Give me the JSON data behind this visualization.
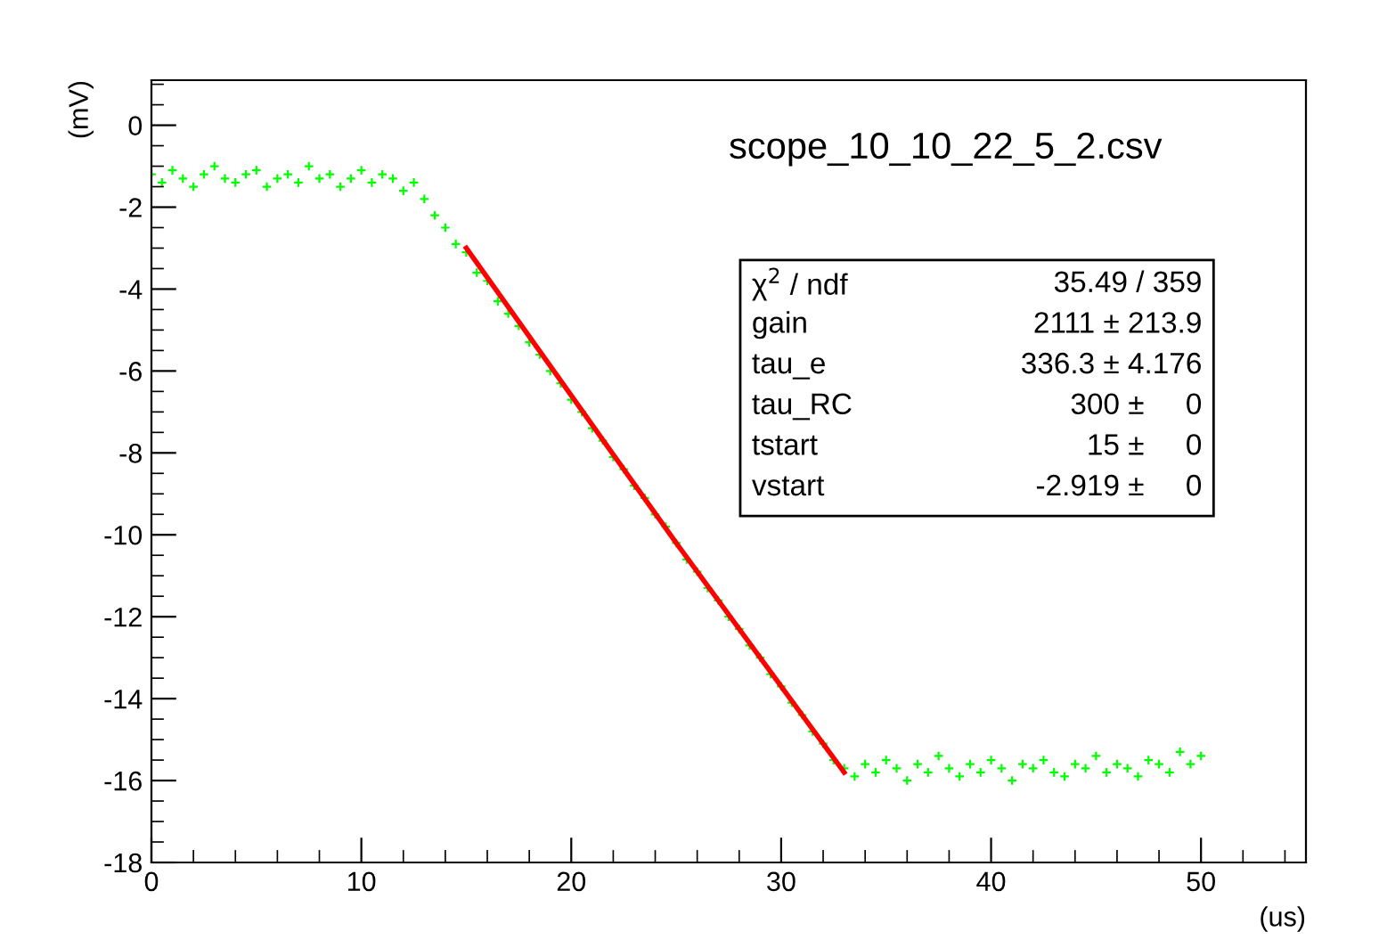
{
  "chart_data": {
    "type": "scatter",
    "title": "scope_10_10_22_5_2.csv",
    "xlabel": "(us)",
    "ylabel": "(mV)",
    "xlim": [
      0,
      55
    ],
    "ylim": [
      -18,
      1.1
    ],
    "xticks": [
      0,
      10,
      20,
      30,
      40,
      50
    ],
    "yticks": [
      -18,
      -16,
      -14,
      -12,
      -10,
      -8,
      -6,
      -4,
      -2,
      0
    ],
    "grid": false,
    "legend": false,
    "series": [
      {
        "marker": "cross",
        "color": "#00ff00",
        "x": [
          0,
          0.5,
          1,
          1.5,
          2,
          2.5,
          3,
          3.5,
          4,
          4.5,
          5,
          5.5,
          6,
          6.5,
          7,
          7.5,
          8,
          8.5,
          9,
          9.5,
          10,
          10.5,
          11,
          11.5,
          12,
          12.5,
          13,
          13.5,
          14,
          14.5,
          15,
          15.5,
          16,
          16.5,
          17,
          17.5,
          18,
          18.5,
          19,
          19.5,
          20,
          20.5,
          21,
          21.5,
          22,
          22.5,
          23,
          23.5,
          24,
          24.5,
          25,
          25.5,
          26,
          26.5,
          27,
          27.5,
          28,
          28.5,
          29,
          29.5,
          30,
          30.5,
          31,
          31.5,
          32,
          32.5,
          33,
          33.5,
          34,
          34.5,
          35,
          35.5,
          36,
          36.5,
          37,
          37.5,
          38,
          38.5,
          39,
          39.5,
          40,
          40.5,
          41,
          41.5,
          42,
          42.5,
          43,
          43.5,
          44,
          44.5,
          45,
          45.5,
          46,
          46.5,
          47,
          47.5,
          48,
          48.5,
          49,
          49.5,
          50
        ],
        "values": [
          -1.2,
          -1.4,
          -1.1,
          -1.3,
          -1.5,
          -1.2,
          -1.0,
          -1.3,
          -1.4,
          -1.2,
          -1.1,
          -1.5,
          -1.3,
          -1.2,
          -1.4,
          -1.0,
          -1.3,
          -1.2,
          -1.5,
          -1.3,
          -1.1,
          -1.4,
          -1.2,
          -1.3,
          -1.6,
          -1.4,
          -1.8,
          -2.2,
          -2.5,
          -2.9,
          -3.1,
          -3.6,
          -3.8,
          -4.3,
          -4.6,
          -4.9,
          -5.3,
          -5.6,
          -6.0,
          -6.3,
          -6.7,
          -7.0,
          -7.4,
          -7.7,
          -8.1,
          -8.4,
          -8.8,
          -9.1,
          -9.5,
          -9.8,
          -10.2,
          -10.6,
          -10.9,
          -11.3,
          -11.6,
          -12.0,
          -12.3,
          -12.7,
          -13.0,
          -13.4,
          -13.7,
          -14.1,
          -14.4,
          -14.8,
          -15.1,
          -15.5,
          -15.7,
          -15.9,
          -15.6,
          -15.8,
          -15.5,
          -15.7,
          -16.0,
          -15.6,
          -15.8,
          -15.4,
          -15.7,
          -15.9,
          -15.6,
          -15.8,
          -15.5,
          -15.7,
          -16.0,
          -15.6,
          -15.7,
          -15.5,
          -15.8,
          -15.9,
          -15.6,
          -15.7,
          -15.4,
          -15.8,
          -15.6,
          -15.7,
          -15.9,
          -15.5,
          -15.6,
          -15.8,
          -15.3,
          -15.6,
          -15.4
        ]
      },
      {
        "type": "line",
        "marker": "none",
        "color": "#ff0000",
        "x": [
          15,
          20,
          25,
          30,
          33
        ],
        "values": [
          -3.0,
          -6.6,
          -10.2,
          -13.7,
          -15.8
        ]
      }
    ],
    "annotations": [
      "χ$^{2}$ / ndf",
      "35.49 / 359",
      "gain",
      "2111 ± 213.9",
      "tau_e",
      "336.3 ± 4.176",
      "tau_RC",
      "300 ±     0",
      "tstart",
      "15 ±     0",
      "vstart",
      "-2.919 ±     0"
    ]
  }
}
